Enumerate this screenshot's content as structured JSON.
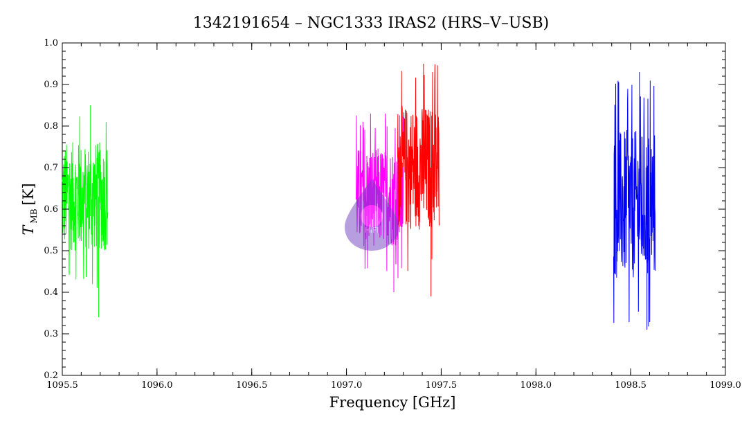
{
  "chart_data": {
    "type": "line",
    "title": "1342191654 – NGC1333 IRAS2 (HRS–V–USB)",
    "xlabel": "Frequency [GHz]",
    "ylabel_symbol": "T",
    "ylabel_subscript": "MB",
    "ylabel_unit": "[K]",
    "xlim": [
      1095.5,
      1099.0
    ],
    "ylim": [
      0.2,
      1.0
    ],
    "x_ticks": [
      "1095.5",
      "1096.0",
      "1096.5",
      "1097.0",
      "1097.5",
      "1098.0",
      "1098.5",
      "1099.0"
    ],
    "y_ticks": [
      "0.2",
      "0.3",
      "0.4",
      "0.5",
      "0.6",
      "0.7",
      "0.8",
      "0.9",
      "1.0"
    ],
    "grid": false,
    "watermark_text": "HIFI",
    "series": [
      {
        "color": "#00ff00",
        "x_range": [
          1095.5,
          1095.74
        ],
        "mean": 0.63,
        "min": 0.34,
        "max": 0.85
      },
      {
        "color": "#ff00ff",
        "x_range": [
          1097.05,
          1097.3
        ],
        "mean": 0.63,
        "min": 0.4,
        "max": 0.83
      },
      {
        "color": "#ff0000",
        "x_range": [
          1097.27,
          1097.49
        ],
        "mean": 0.7,
        "min": 0.39,
        "max": 0.95
      },
      {
        "color": "#0000ff",
        "x_range": [
          1098.41,
          1098.63
        ],
        "mean": 0.61,
        "min": 0.31,
        "max": 0.93
      }
    ]
  }
}
